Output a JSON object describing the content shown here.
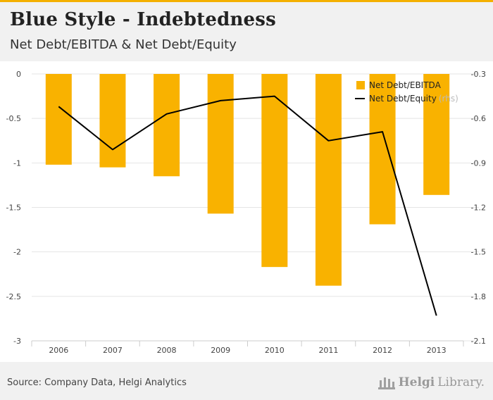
{
  "header": {
    "title": "Blue Style - Indebtedness",
    "subtitle": "Net Debt/EBITDA & Net Debt/Equity"
  },
  "footer": {
    "source": "Source: Company Data, Helgi Analytics",
    "brand_part1": "Helgi",
    "brand_part2": "Library."
  },
  "colors": {
    "bar": "#f9b200",
    "line": "#000000",
    "accent": "#f4b000"
  },
  "chart_data": {
    "type": "bar+line",
    "categories": [
      "2006",
      "2007",
      "2008",
      "2009",
      "2010",
      "2011",
      "2012",
      "2013"
    ],
    "series": [
      {
        "name": "Net Debt/EBITDA",
        "type": "bar",
        "axis": "left",
        "values": [
          -1.02,
          -1.05,
          -1.15,
          -1.57,
          -2.17,
          -2.38,
          -1.69,
          -1.36
        ]
      },
      {
        "name": "Net Debt/Equity",
        "type": "line",
        "axis": "right",
        "values": [
          -0.52,
          -0.81,
          -0.57,
          -0.48,
          -0.45,
          -0.75,
          -0.69,
          -1.93
        ]
      }
    ],
    "legend": [
      "Net Debt/EBITDA",
      "Net Debt/Equity"
    ],
    "legend_rhs_tag": "(rhs)",
    "left_axis": {
      "min": -3,
      "max": 0,
      "ticks": [
        "0",
        "-0.5",
        "-1",
        "-1.5",
        "-2",
        "-2.5",
        "-3"
      ]
    },
    "right_axis": {
      "min": -2.1,
      "max": -0.3,
      "ticks": [
        "-0.3",
        "-0.6",
        "-0.9",
        "-1.2",
        "-1.5",
        "-1.8",
        "-2.1"
      ]
    },
    "legend_position": "top-right",
    "grid": true
  }
}
